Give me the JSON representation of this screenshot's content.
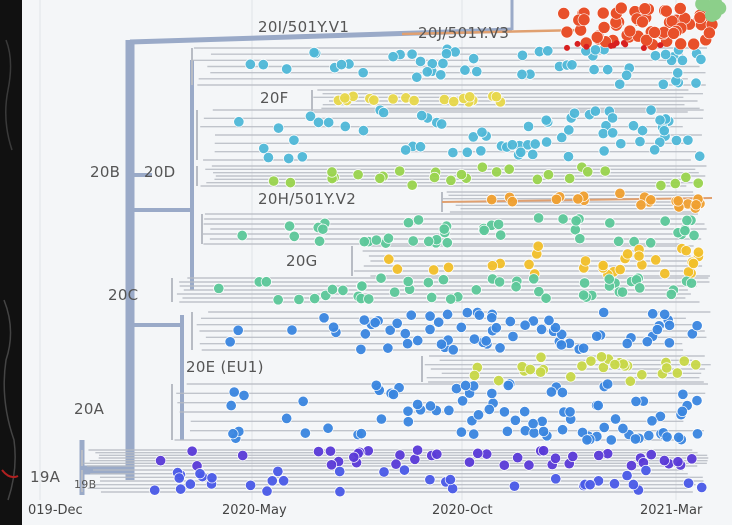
{
  "axis": {
    "ticks": [
      "019-Dec",
      "2020-May",
      "2020-Oct",
      "2021-Mar"
    ]
  },
  "clade_labels": {
    "c20i": "20I/501Y.V1",
    "c20j": "20J/501Y.V3",
    "c20f": "20F",
    "c20b": "20B",
    "c20d": "20D",
    "c20h": "20H/501Y.V2",
    "c20g": "20G",
    "c20c": "20C",
    "c20e": "20E (EU1)",
    "c20a": "20A",
    "c19a": "19A",
    "c19b": "19B"
  },
  "colors": {
    "c20j": "#e8502a",
    "c20i": "#e0a070",
    "c20f": "#e8d84a",
    "c20b": "#4fb8d8",
    "c20d": "#9ad44e",
    "c20h": "#f0a030",
    "c20g": "#f2c02a",
    "c20c": "#5cc89a",
    "c20e": "#c8d848",
    "c20a": "#3a86e0",
    "c19a": "#5a3ad8",
    "c19b": "#4a5ae8",
    "trunk": "#9aaac8",
    "branch": "#b8bcc4"
  }
}
